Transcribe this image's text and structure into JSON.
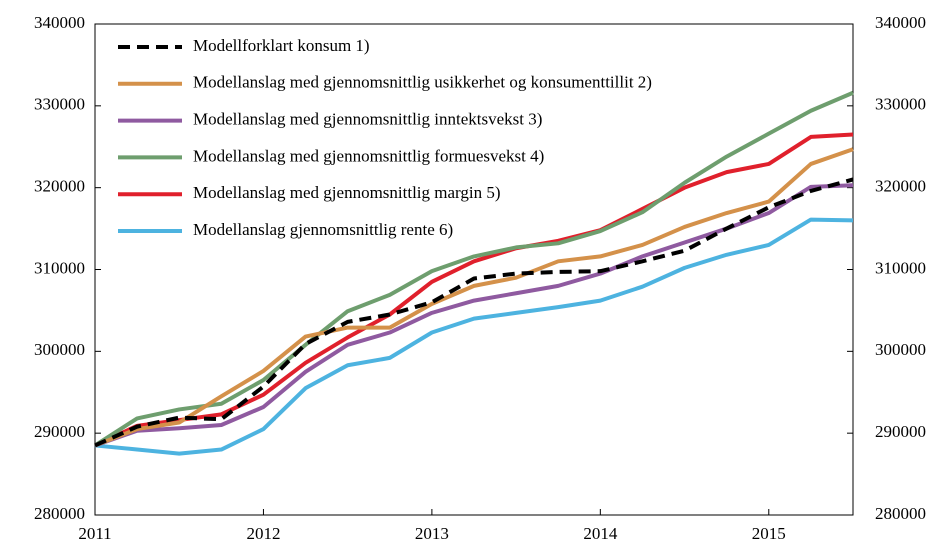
{
  "chart_data": {
    "type": "line",
    "x": [
      2011,
      2011.25,
      2011.5,
      2011.75,
      2012,
      2012.25,
      2012.5,
      2012.75,
      2013,
      2013.25,
      2013.5,
      2013.75,
      2014,
      2014.25,
      2014.5,
      2014.75,
      2015,
      2015.25,
      2015.5
    ],
    "xlim": [
      2011,
      2015.5
    ],
    "xticks": [
      2011,
      2012,
      2013,
      2014,
      2015
    ],
    "ylim": [
      280000,
      340000
    ],
    "yticks": [
      280000,
      290000,
      300000,
      310000,
      320000,
      330000,
      340000
    ],
    "y2lim": [
      280000,
      340000
    ],
    "y2ticks": [
      280000,
      290000,
      300000,
      310000,
      320000,
      330000,
      340000
    ],
    "legend": "upper left",
    "series": [
      {
        "name": "Modellforklart konsum 1)",
        "color": "#000000",
        "dashed": true,
        "values": [
          288500,
          290800,
          291900,
          291700,
          295700,
          300900,
          303600,
          304500,
          306000,
          308900,
          309500,
          309700,
          309800,
          311000,
          312300,
          315000,
          317600,
          319600,
          321000
        ]
      },
      {
        "name": "Modellanslag med gjennomsnittlig usikkerhet og konsumenttillit 2)",
        "color": "#d4914a",
        "values": [
          288500,
          290500,
          291300,
          294500,
          297600,
          301800,
          302900,
          302900,
          305800,
          308000,
          309000,
          311000,
          311600,
          313000,
          315200,
          316900,
          318300,
          322900,
          324700
        ]
      },
      {
        "name": "Modellanslag med gjennomsnittlig inntektsvekst 3)",
        "color": "#8f5aa0",
        "values": [
          288500,
          290300,
          290600,
          291000,
          293200,
          297500,
          300800,
          302300,
          304700,
          306200,
          307100,
          308000,
          309500,
          311600,
          313300,
          315000,
          316900,
          320100,
          320300
        ]
      },
      {
        "name": "Modellanslag med gjennomsnittlig formuesvekst 4)",
        "color": "#6e9e6e",
        "values": [
          288500,
          291800,
          292900,
          293600,
          296500,
          300800,
          304900,
          306900,
          309800,
          311600,
          312700,
          313200,
          314700,
          317000,
          320600,
          323800,
          326600,
          329400,
          331600
        ]
      },
      {
        "name": "Modellanslag med gjennomsnittlig margin 5)",
        "color": "#e0202c",
        "values": [
          288500,
          290900,
          291600,
          292300,
          294700,
          298600,
          301700,
          304500,
          308500,
          311000,
          312600,
          313500,
          314800,
          317400,
          320000,
          321900,
          322900,
          326200,
          326500
        ]
      },
      {
        "name": "Modellanslag gjennomsnittlig rente 6)",
        "color": "#4db3e0",
        "values": [
          288500,
          288000,
          287500,
          288000,
          290500,
          295500,
          298300,
          299200,
          302300,
          304000,
          304700,
          305400,
          306200,
          307900,
          310200,
          311800,
          313000,
          316100,
          316000
        ]
      }
    ]
  }
}
